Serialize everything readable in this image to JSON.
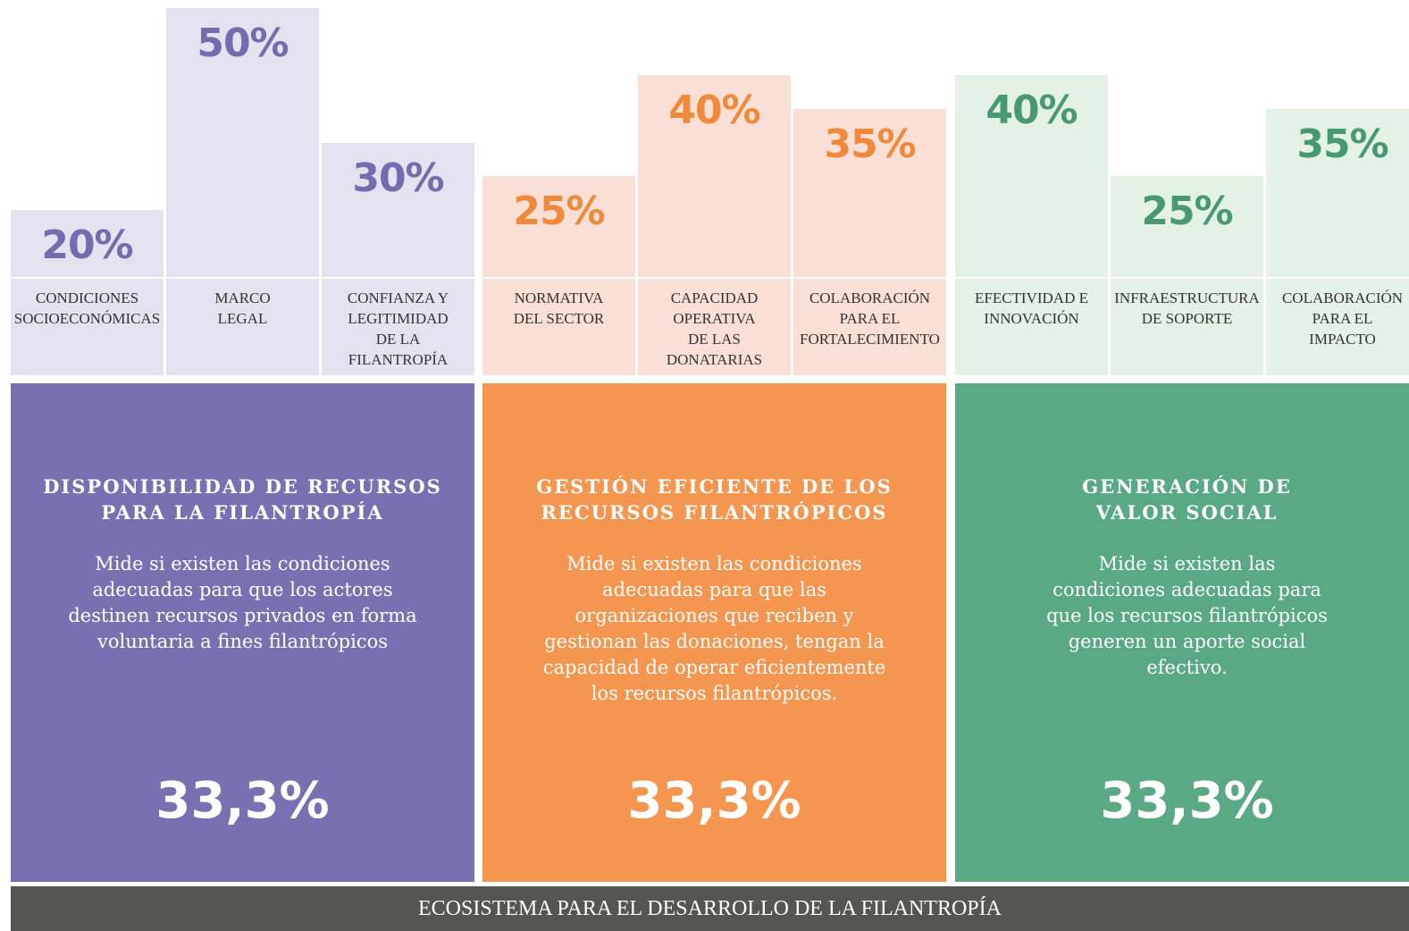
{
  "chart_data": {
    "type": "bar",
    "ylim": [
      10,
      50
    ],
    "footer": "ECOSISTEMA PARA EL DESARROLLO DE LA FILANTROPÍA",
    "groups": [
      {
        "name": "DISPONIBILIDAD DE RECURSOS\nPARA LA FILANTROPÍA",
        "description": "Mide si existen las condiciones\nadecuadas para que los actores\ndestinen recursos privados en forma\nvoluntaria a fines filantrópicos",
        "weight_label": "33,3%",
        "color": "#7771b1",
        "light_color": "#e3e2ee",
        "text_color": "#716dae",
        "categories": [
          "CONDICIONES\nSOCIOECONÓMICAS",
          "MARCO\nLEGAL",
          "CONFIANZA Y\nLEGITIMIDAD\nDE LA\nFILANTROPÍA"
        ],
        "values": [
          20,
          50,
          30
        ],
        "value_labels": [
          "20%",
          "50%",
          "30%"
        ]
      },
      {
        "name": "GESTIÓN EFICIENTE DE LOS\nRECURSOS FILANTRÓPICOS",
        "description": "Mide si existen las condiciones\nadecuadas para que las\norganizaciones que reciben y\ngestionan las donaciones, tengan la\ncapacidad de operar eficientemente\nlos recursos filantrópicos.",
        "weight_label": "33,3%",
        "color": "#f4964f",
        "light_color": "#f9dfd5",
        "text_color": "#f08a3a",
        "categories": [
          "NORMATIVA\nDEL SECTOR",
          "CAPACIDAD\nOPERATIVA\nDE LAS\nDONATARIAS",
          "COLABORACIÓN\nPARA EL\nFORTALECIMIENTO"
        ],
        "values": [
          25,
          40,
          35
        ],
        "value_labels": [
          "25%",
          "40%",
          "35%"
        ]
      },
      {
        "name": "GENERACIÓN DE\nVALOR SOCIAL",
        "description": "Mide si existen las\ncondiciones adecuadas para\nque los recursos filantrópicos\ngeneren un aporte social\nefectivo.",
        "weight_label": "33,3%",
        "color": "#5aa985",
        "light_color": "#e4f1e5",
        "text_color": "#489872",
        "categories": [
          "EFECTIVIDAD E\nINNOVACIÓN",
          "INFRAESTRUCTURA\nDE SOPORTE",
          "COLABORACIÓN\nPARA EL\nIMPACTO"
        ],
        "values": [
          40,
          25,
          35
        ],
        "value_labels": [
          "40%",
          "25%",
          "35%"
        ]
      }
    ]
  }
}
